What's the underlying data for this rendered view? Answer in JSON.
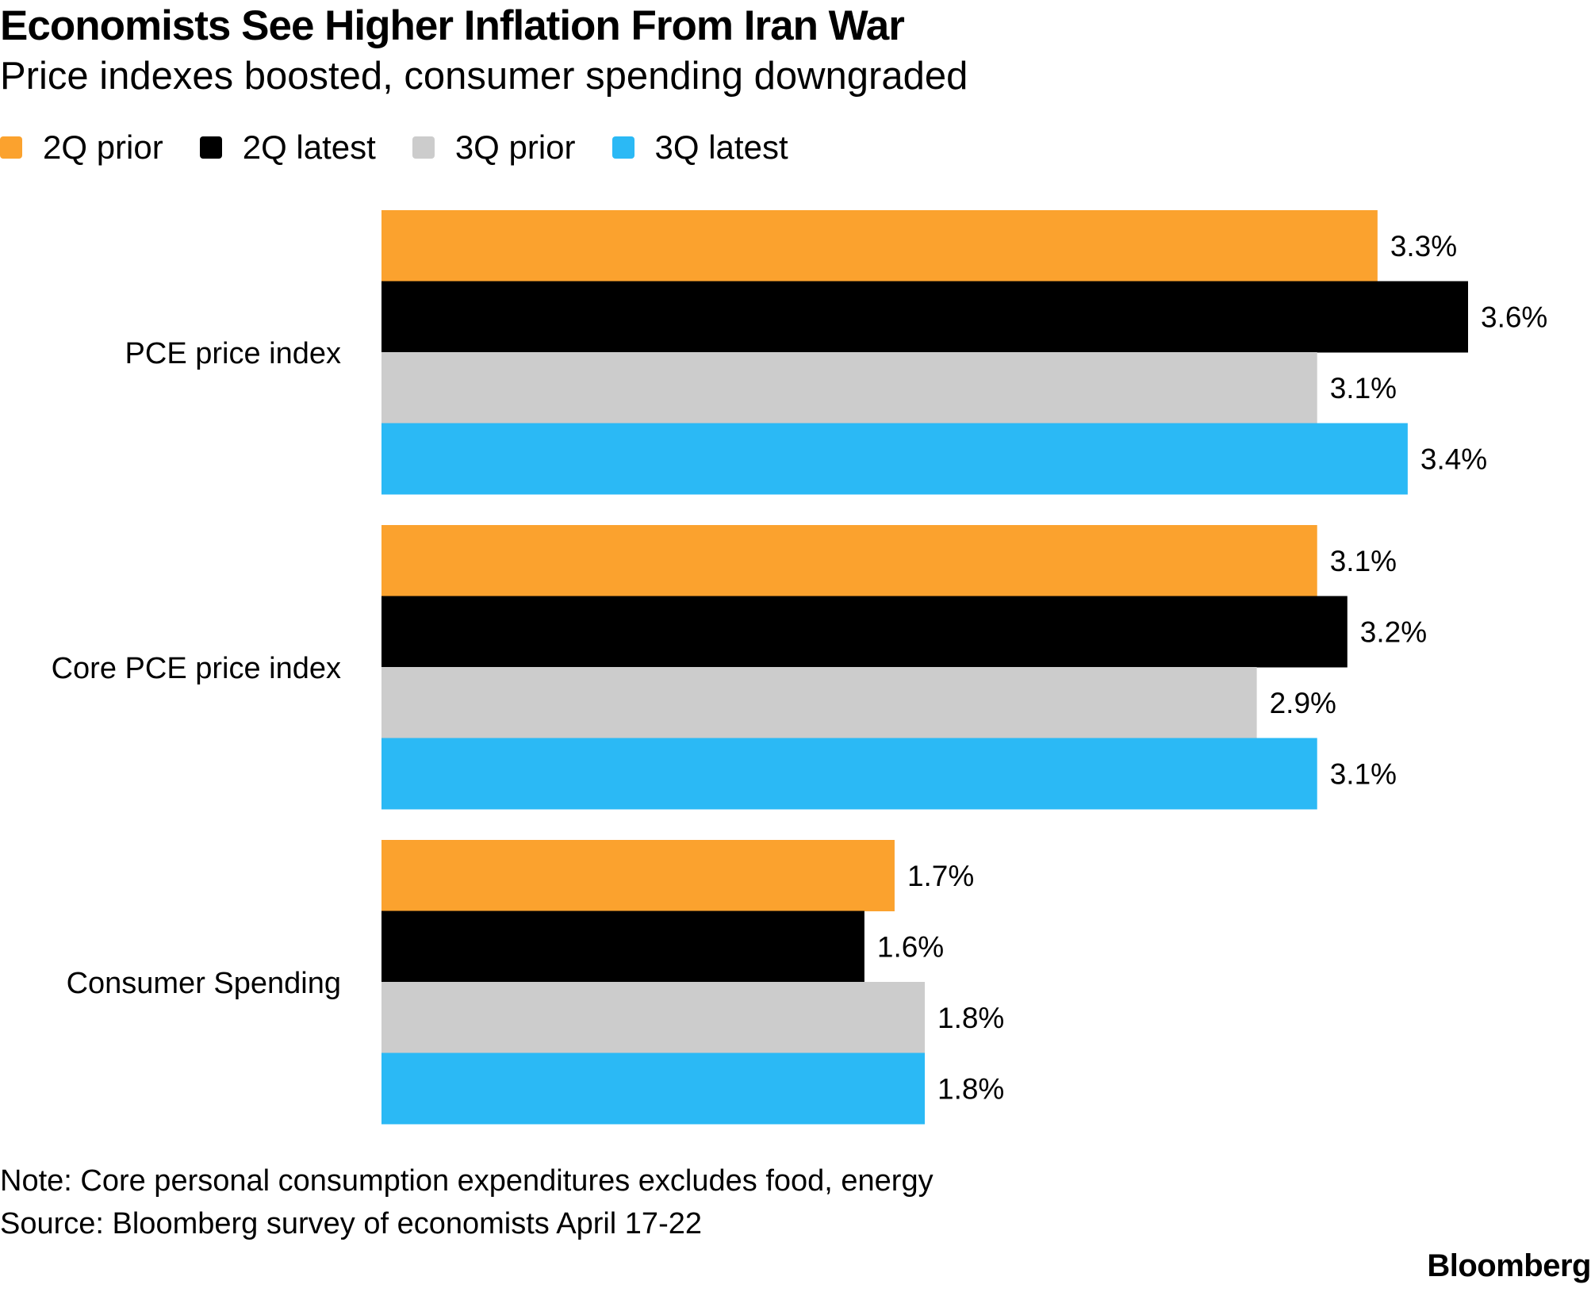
{
  "colors": {
    "2Q prior": "#FBA22E",
    "2Q latest": "#000000",
    "3Q prior": "#CCCCCC",
    "3Q latest": "#2BB9F5"
  },
  "chart_data": {
    "type": "bar",
    "orientation": "horizontal",
    "title": "Economists See Higher Inflation From Iran War",
    "subtitle": "Price indexes boosted, consumer spending downgraded",
    "categories": [
      "PCE price index",
      "Core PCE price index",
      "Consumer Spending"
    ],
    "series": [
      {
        "name": "2Q prior",
        "values": [
          3.3,
          3.1,
          1.7
        ],
        "labels": [
          "3.3%",
          "3.1%",
          "1.7%"
        ]
      },
      {
        "name": "2Q latest",
        "values": [
          3.6,
          3.2,
          1.6
        ],
        "labels": [
          "3.6%",
          "3.2%",
          "1.6%"
        ]
      },
      {
        "name": "3Q prior",
        "values": [
          3.1,
          2.9,
          1.8
        ],
        "labels": [
          "3.1%",
          "2.9%",
          "1.8%"
        ]
      },
      {
        "name": "3Q latest",
        "values": [
          3.4,
          3.1,
          1.8
        ],
        "labels": [
          "3.4%",
          "3.1%",
          "1.8%"
        ]
      }
    ],
    "xlim": [
      0,
      3.6
    ],
    "xlabel": "",
    "ylabel": "",
    "grid": false,
    "legend_position": "top-left",
    "note": "Note: Core personal consumption expenditures excludes food, energy",
    "source": "Source: Bloomberg survey of economists April 17-22",
    "brand": "Bloomberg"
  }
}
